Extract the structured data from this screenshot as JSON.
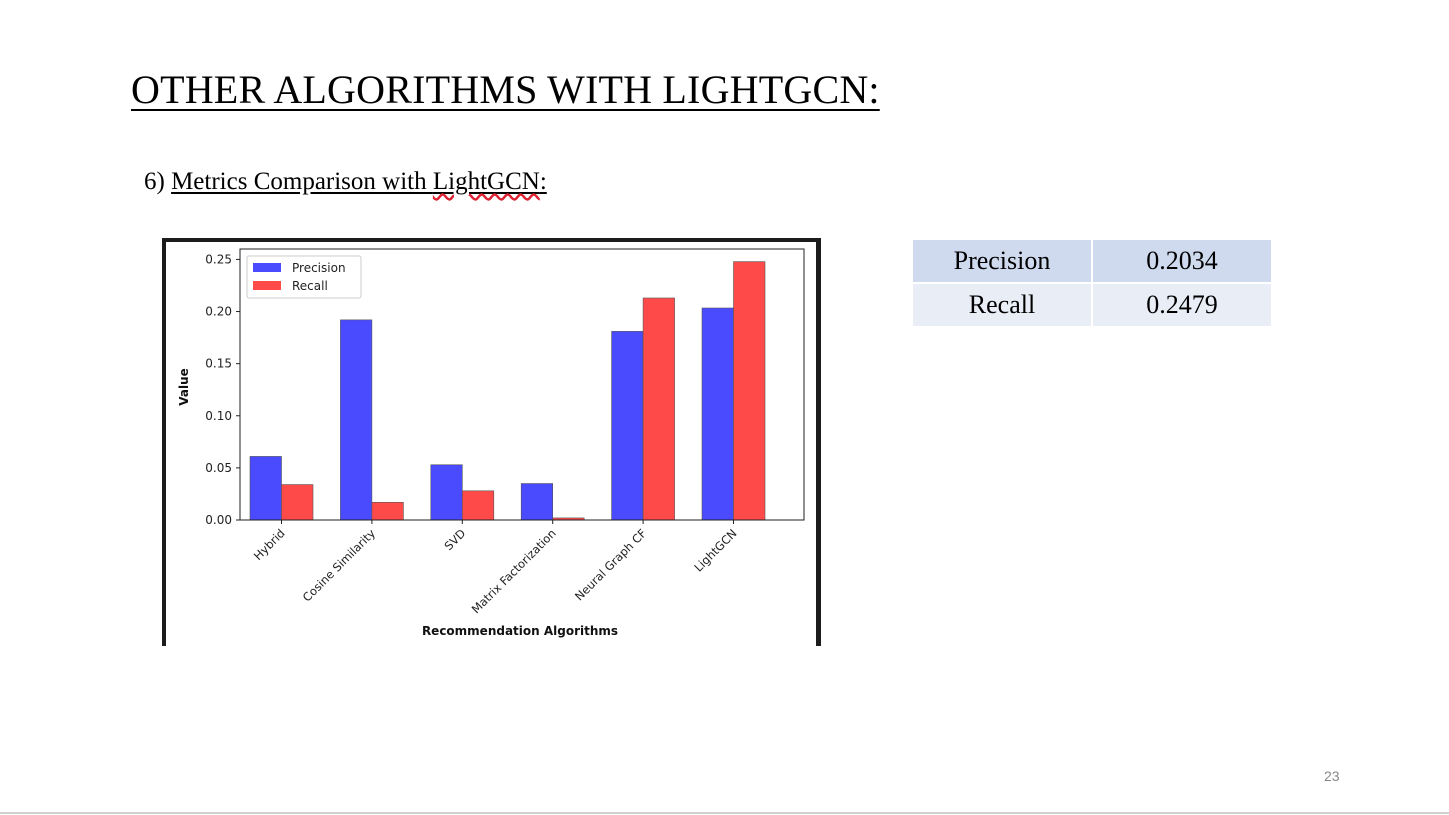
{
  "slide": {
    "title": "OTHER ALGORITHMS WITH LIGHTGCN:",
    "subtitle_number": "6)",
    "subtitle_text_a": "Metrics Comparison with ",
    "subtitle_text_b": "LightGCN",
    "subtitle_text_c": ":",
    "page_number": "23"
  },
  "metrics_table": [
    {
      "label": "Precision",
      "value": "0.2034"
    },
    {
      "label": "Recall",
      "value": "0.2479"
    }
  ],
  "colors": {
    "precision": "#4a4aff",
    "recall": "#ff4a4a",
    "table_row_1": "#cfdaee",
    "table_row_2": "#e9edf6"
  },
  "chart_data": {
    "type": "bar",
    "categories": [
      "Hybrid",
      "Cosine Similarity",
      "SVD",
      "Matrix Factorization",
      "Neural Graph CF",
      "LightGCN"
    ],
    "series": [
      {
        "name": "Precision",
        "values": [
          0.061,
          0.192,
          0.053,
          0.035,
          0.181,
          0.2034
        ]
      },
      {
        "name": "Recall",
        "values": [
          0.034,
          0.017,
          0.028,
          0.002,
          0.213,
          0.2479
        ]
      }
    ],
    "title": "",
    "xlabel": "Recommendation Algorithms",
    "ylabel": "Value",
    "ylim": [
      0,
      0.26
    ],
    "yticks": [
      "0.00",
      "0.05",
      "0.10",
      "0.15",
      "0.20",
      "0.25"
    ],
    "ytick_values": [
      0,
      0.05,
      0.1,
      0.15,
      0.2,
      0.25
    ],
    "legend_position": "top-left",
    "grid": false
  }
}
